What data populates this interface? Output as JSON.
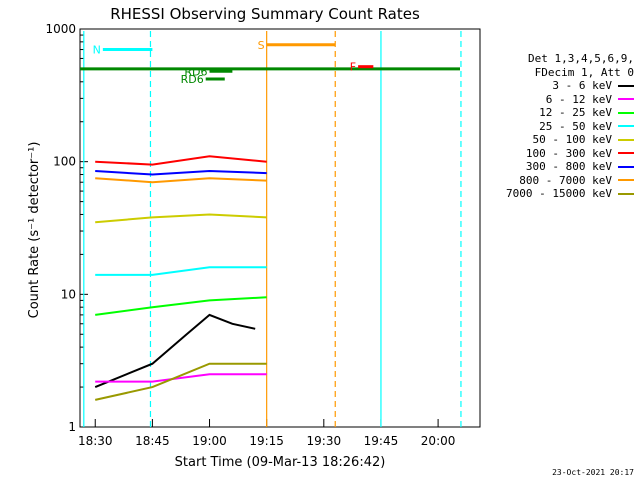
{
  "chart_data": {
    "type": "line",
    "title": "RHESSI Observing Summary Count Rates",
    "xlabel": "Start Time (09-Mar-13 18:26:42)",
    "ylabel": "Count Rate (s⁻¹ detector⁻¹)",
    "yscale": "log",
    "ylim": [
      1,
      1000
    ],
    "y_ticks": [
      1,
      10,
      100,
      1000
    ],
    "y_tick_labels": [
      "1",
      "10",
      "100",
      "1000"
    ],
    "xlim_minutes": [
      1106,
      1211
    ],
    "x_ticks": [
      "18:30",
      "18:45",
      "19:00",
      "19:15",
      "19:30",
      "19:45",
      "20:00"
    ],
    "x_tick_minutes": [
      1110,
      1125,
      1140,
      1155,
      1170,
      1185,
      1200
    ],
    "series": [
      {
        "name": "3 - 6 keV",
        "color": "#000000",
        "times": [
          18.5,
          18.75,
          18.9,
          19.0,
          19.1,
          19.2
        ],
        "values": [
          2.0,
          3.0,
          5.0,
          7.0,
          6.0,
          5.5
        ]
      },
      {
        "name": "6 - 12 keV",
        "color": "#ff00ff",
        "times": [
          18.5,
          18.75,
          19.0,
          19.25
        ],
        "values": [
          2.2,
          2.2,
          2.5,
          2.5
        ]
      },
      {
        "name": "12 - 25 keV",
        "color": "#00ff00",
        "times": [
          18.5,
          18.75,
          19.0,
          19.25
        ],
        "values": [
          7.0,
          8.0,
          9.0,
          9.5
        ]
      },
      {
        "name": "25 - 50 keV",
        "color": "#00ffff",
        "times": [
          18.5,
          18.75,
          19.0,
          19.25
        ],
        "values": [
          14.0,
          14.0,
          16.0,
          16.0
        ]
      },
      {
        "name": "50 - 100 keV",
        "color": "#cccc00",
        "times": [
          18.5,
          18.75,
          19.0,
          19.25
        ],
        "values": [
          35.0,
          38.0,
          40.0,
          38.0
        ]
      },
      {
        "name": "100 - 300 keV",
        "color": "#ff0000",
        "times": [
          18.5,
          18.75,
          19.0,
          19.25
        ],
        "values": [
          100.0,
          95.0,
          110.0,
          100.0
        ]
      },
      {
        "name": "300 - 800 keV",
        "color": "#0000ff",
        "times": [
          18.5,
          18.75,
          19.0,
          19.25
        ],
        "values": [
          85.0,
          80.0,
          85.0,
          82.0
        ]
      },
      {
        "name": "800 - 7000 keV",
        "color": "#ff9900",
        "times": [
          18.5,
          18.75,
          19.0,
          19.25
        ],
        "values": [
          75.0,
          70.0,
          75.0,
          72.0
        ]
      },
      {
        "name": "7000 - 15000 keV",
        "color": "#999900",
        "times": [
          18.5,
          18.75,
          19.0,
          19.25
        ],
        "values": [
          1.6,
          2.0,
          3.0,
          3.0
        ]
      }
    ],
    "annotations": [
      {
        "label": "N",
        "color": "#00ffff",
        "level": 700
      },
      {
        "label": "S",
        "color": "#ff9900",
        "level": 760
      },
      {
        "label": "F",
        "color": "#ff0000",
        "level": 520
      },
      {
        "label": "RD6",
        "color": "#008800",
        "level": 420
      },
      {
        "label": "RD6",
        "color": "#008800",
        "level": 480
      }
    ],
    "legend_header": [
      "Det 1,3,4,5,6,9,",
      "FDecim 1, Att 0"
    ],
    "legend_position": "right",
    "grid": false
  },
  "footer": {
    "date": "23-Oct-2021 20:17"
  }
}
